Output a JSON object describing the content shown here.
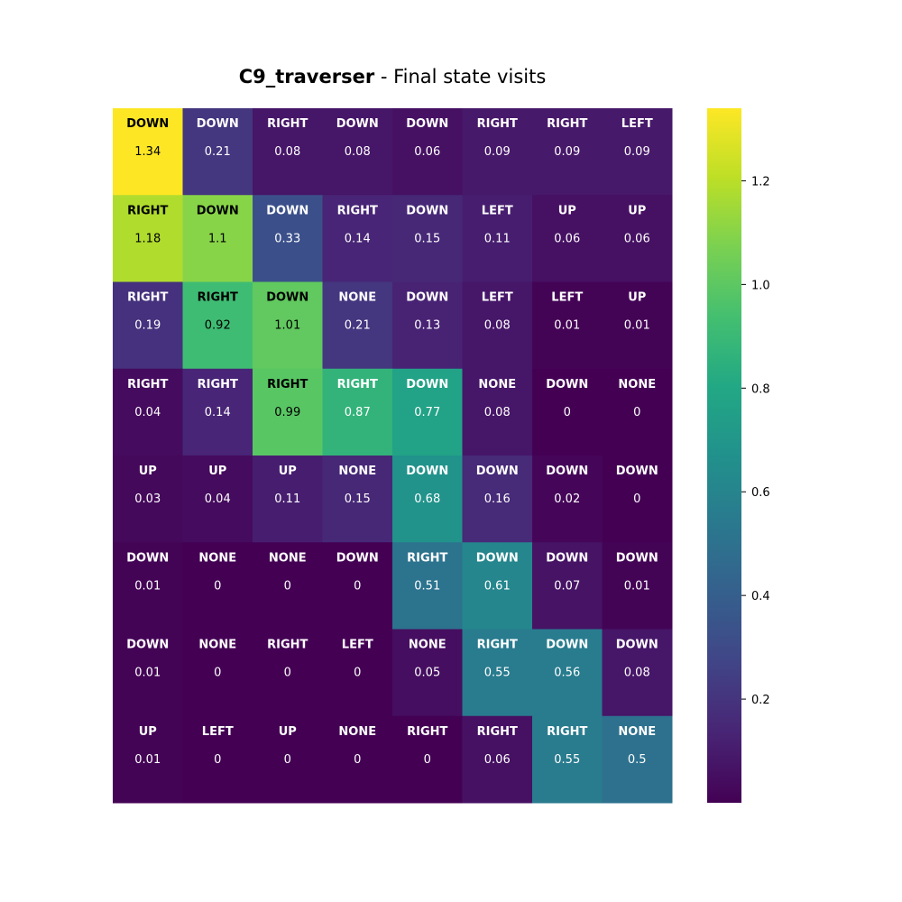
{
  "title": {
    "bold": "C9_traverser",
    "rest": " - Final state visits"
  },
  "chart_data": {
    "type": "heatmap",
    "title": "C9_traverser - Final state visits",
    "rows": 8,
    "cols": 8,
    "actions": [
      [
        "DOWN",
        "DOWN",
        "RIGHT",
        "DOWN",
        "DOWN",
        "RIGHT",
        "RIGHT",
        "LEFT"
      ],
      [
        "RIGHT",
        "DOWN",
        "DOWN",
        "RIGHT",
        "DOWN",
        "LEFT",
        "UP",
        "UP"
      ],
      [
        "RIGHT",
        "RIGHT",
        "DOWN",
        "NONE",
        "DOWN",
        "LEFT",
        "LEFT",
        "UP"
      ],
      [
        "RIGHT",
        "RIGHT",
        "RIGHT",
        "RIGHT",
        "DOWN",
        "NONE",
        "DOWN",
        "NONE"
      ],
      [
        "UP",
        "UP",
        "UP",
        "NONE",
        "DOWN",
        "DOWN",
        "DOWN",
        "DOWN"
      ],
      [
        "DOWN",
        "NONE",
        "NONE",
        "DOWN",
        "RIGHT",
        "DOWN",
        "DOWN",
        "DOWN"
      ],
      [
        "DOWN",
        "NONE",
        "RIGHT",
        "LEFT",
        "NONE",
        "RIGHT",
        "DOWN",
        "DOWN"
      ],
      [
        "UP",
        "LEFT",
        "UP",
        "NONE",
        "RIGHT",
        "RIGHT",
        "RIGHT",
        "NONE"
      ]
    ],
    "labels": [
      [
        "1.34",
        "0.21",
        "0.08",
        "0.08",
        "0.06",
        "0.09",
        "0.09",
        "0.09"
      ],
      [
        "1.18",
        "1.1",
        "0.33",
        "0.14",
        "0.15",
        "0.11",
        "0.06",
        "0.06"
      ],
      [
        "0.19",
        "0.92",
        "1.01",
        "0.21",
        "0.13",
        "0.08",
        "0.01",
        "0.01"
      ],
      [
        "0.04",
        "0.14",
        "0.99",
        "0.87",
        "0.77",
        "0.08",
        "0",
        "0"
      ],
      [
        "0.03",
        "0.04",
        "0.11",
        "0.15",
        "0.68",
        "0.16",
        "0.02",
        "0"
      ],
      [
        "0.01",
        "0",
        "0",
        "0",
        "0.51",
        "0.61",
        "0.07",
        "0.01"
      ],
      [
        "0.01",
        "0",
        "0",
        "0",
        "0.05",
        "0.55",
        "0.56",
        "0.08"
      ],
      [
        "0.01",
        "0",
        "0",
        "0",
        "0",
        "0.06",
        "0.55",
        "0.5"
      ]
    ],
    "values": [
      [
        1.34,
        0.21,
        0.08,
        0.08,
        0.06,
        0.09,
        0.09,
        0.09
      ],
      [
        1.18,
        1.1,
        0.33,
        0.14,
        0.15,
        0.11,
        0.06,
        0.06
      ],
      [
        0.19,
        0.92,
        1.01,
        0.21,
        0.13,
        0.08,
        0.01,
        0.01
      ],
      [
        0.04,
        0.14,
        0.99,
        0.87,
        0.77,
        0.08,
        0,
        0
      ],
      [
        0.03,
        0.04,
        0.11,
        0.15,
        0.68,
        0.16,
        0.02,
        0
      ],
      [
        0.01,
        0,
        0,
        0,
        0.51,
        0.61,
        0.07,
        0.01
      ],
      [
        0.01,
        0,
        0,
        0,
        0.05,
        0.55,
        0.56,
        0.08
      ],
      [
        0.01,
        0,
        0,
        0,
        0,
        0.06,
        0.55,
        0.5
      ]
    ],
    "colormap": "viridis",
    "vmin": 0,
    "vmax": 1.34,
    "colorbar": {
      "ticks": [
        0.2,
        0.4,
        0.6,
        0.8,
        1.0,
        1.2
      ],
      "tick_labels": [
        "0.2",
        "0.4",
        "0.6",
        "0.8",
        "1.0",
        "1.2"
      ]
    },
    "xlabel": "",
    "ylabel": "",
    "grid": false
  }
}
